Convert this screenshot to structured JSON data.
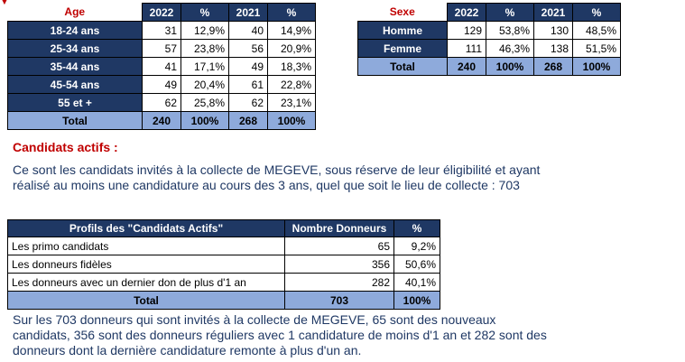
{
  "age_table": {
    "headers": [
      "Age",
      "2022",
      "%",
      "2021",
      "%"
    ],
    "rows": [
      [
        "18-24 ans",
        "31",
        "12,9%",
        "40",
        "14,9%"
      ],
      [
        "25-34 ans",
        "57",
        "23,8%",
        "56",
        "20,9%"
      ],
      [
        "35-44 ans",
        "41",
        "17,1%",
        "49",
        "18,3%"
      ],
      [
        "45-54 ans",
        "49",
        "20,4%",
        "61",
        "22,8%"
      ],
      [
        "55 et +",
        "62",
        "25,8%",
        "62",
        "23,1%"
      ]
    ],
    "total": [
      "Total",
      "240",
      "100%",
      "268",
      "100%"
    ]
  },
  "sexe_table": {
    "headers": [
      "Sexe",
      "2022",
      "%",
      "2021",
      "%"
    ],
    "rows": [
      [
        "Homme",
        "129",
        "53,8%",
        "130",
        "48,5%"
      ],
      [
        "Femme",
        "111",
        "46,3%",
        "138",
        "51,5%"
      ]
    ],
    "total": [
      "Total",
      "240",
      "100%",
      "268",
      "100%"
    ]
  },
  "section_title": "Candidats actifs :",
  "paragraph1": "Ce sont les candidats invités à la collecte de MEGEVE, sous réserve de leur éligibilité  et ayant réalisé au moins une candidature au cours des 3 ans, quel que soit le lieu de collecte : 703",
  "profils_table": {
    "headers": [
      "Profils des \"Candidats Actifs\"",
      "Nombre Donneurs",
      "%"
    ],
    "rows": [
      [
        "Les primo candidats",
        "65",
        "9,2%"
      ],
      [
        "Les donneurs fidèles",
        "356",
        "50,6%"
      ],
      [
        "Les donneurs avec un dernier don de plus d'1 an",
        "282",
        "40,1%"
      ]
    ],
    "total": [
      "Total",
      "703",
      "100%"
    ]
  },
  "paragraph2": "Sur les 703 donneurs qui sont invités à la collecte de MEGEVE, 65 sont des nouveaux candidats, 356 sont des donneurs réguliers avec 1 candidature de moins d'1 an et 282 sont des donneurs dont la dernière candidature remonte à plus d'un an.",
  "colors": {
    "navy": "#1f3864",
    "red": "#c00000",
    "total_bg": "#8eaadb"
  }
}
